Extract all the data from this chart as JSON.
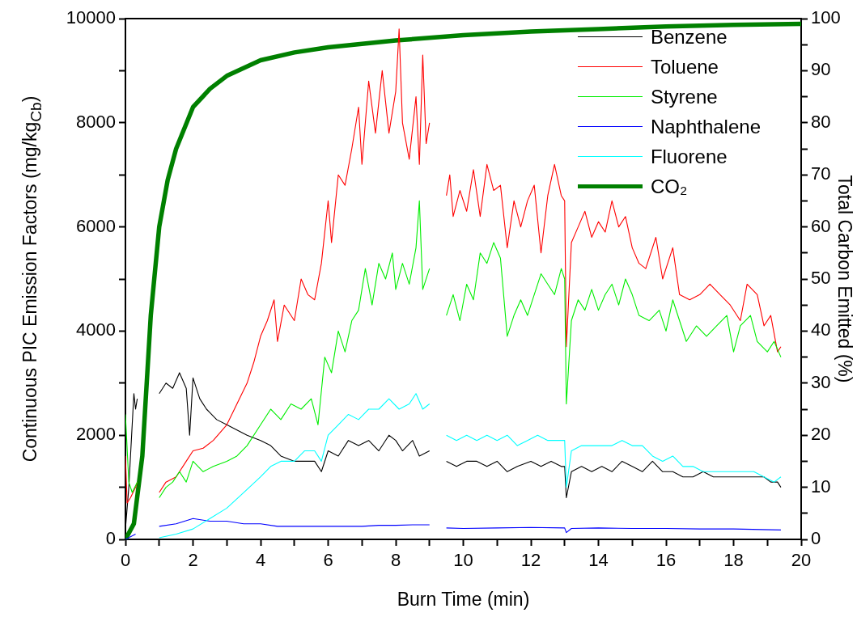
{
  "chart_data": {
    "type": "line",
    "xlabel": "Burn Time (min)",
    "ylabel": "Continuous PIC Emission Factors (mg/kg$_{Cb}$)",
    "y2label": "Total Carbon Emitted (%)",
    "xlim": [
      0,
      20
    ],
    "xticks": [
      0,
      {
        "value": 1,
        "label": null
      },
      2,
      {
        "value": 3,
        "label": null
      },
      4,
      {
        "value": 5,
        "label": null
      },
      6,
      {
        "value": 7,
        "label": null
      },
      8,
      {
        "value": 9,
        "label": null
      },
      10,
      {
        "value": 11,
        "label": null
      },
      12,
      {
        "value": 13,
        "label": null
      },
      14,
      {
        "value": 15,
        "label": null
      },
      16,
      {
        "value": 17,
        "label": null
      },
      18,
      {
        "value": 19,
        "label": null
      },
      20
    ],
    "ylim": [
      0,
      10000
    ],
    "yticks": [
      0,
      {
        "value": 1000,
        "label": null
      },
      2000,
      {
        "value": 3000,
        "label": null
      },
      4000,
      {
        "value": 5000,
        "label": null
      },
      6000,
      {
        "value": 7000,
        "label": null
      },
      8000,
      {
        "value": 9000,
        "label": null
      },
      10000
    ],
    "y2lim": [
      0,
      100
    ],
    "y2ticks": [
      0,
      {
        "value": 5,
        "label": null
      },
      10,
      {
        "value": 15,
        "label": null
      },
      20,
      {
        "value": 25,
        "label": null
      },
      30,
      {
        "value": 35,
        "label": null
      },
      40,
      {
        "value": 45,
        "label": null
      },
      50,
      {
        "value": 55,
        "label": null
      },
      60,
      {
        "value": 65,
        "label": null
      },
      70,
      {
        "value": 75,
        "label": null
      },
      80,
      {
        "value": 85,
        "label": null
      },
      90,
      {
        "value": 95,
        "label": null
      },
      100
    ],
    "grid": false,
    "legend": "top right",
    "marker": "none",
    "line_style": "solid",
    "series": [
      {
        "name": "Benzene",
        "color": "#000000",
        "x": [
          0,
          0.1,
          0.2,
          0.25,
          0.3,
          0.35,
          0.6,
          1.0,
          1.2,
          1.4,
          1.6,
          1.8,
          1.9,
          2.0,
          2.2,
          2.4,
          2.7,
          3.0,
          3.3,
          3.6,
          4.0,
          4.3,
          4.6,
          5.0,
          5.3,
          5.6,
          5.8,
          6.0,
          6.3,
          6.6,
          6.9,
          7.2,
          7.5,
          7.8,
          8.0,
          8.2,
          8.5,
          8.7,
          9.0,
          9.2,
          9.5,
          9.8,
          10.1,
          10.4,
          10.7,
          11.0,
          11.3,
          11.6,
          12.0,
          12.3,
          12.6,
          12.9,
          13.0,
          13.05,
          13.2,
          13.5,
          13.8,
          14.1,
          14.4,
          14.7,
          15.0,
          15.3,
          15.6,
          15.9,
          16.2,
          16.5,
          16.8,
          17.1,
          17.4,
          17.7,
          18.0,
          18.3,
          18.6,
          18.9,
          19.1,
          19.3,
          19.4
        ],
        "values": [
          200,
          1000,
          2200,
          2800,
          2500,
          2700,
          null,
          2800,
          3000,
          2900,
          3200,
          2900,
          2000,
          3100,
          2700,
          2500,
          2300,
          2200,
          2100,
          2000,
          1900,
          1800,
          1600,
          1500,
          1500,
          1500,
          1300,
          1700,
          1600,
          1900,
          1800,
          1900,
          1700,
          2000,
          1900,
          1700,
          1900,
          1600,
          1700,
          null,
          1500,
          1400,
          1500,
          1500,
          1400,
          1500,
          1300,
          1400,
          1500,
          1400,
          1500,
          1400,
          1400,
          800,
          1300,
          1400,
          1300,
          1400,
          1300,
          1500,
          1400,
          1300,
          1500,
          1300,
          1300,
          1200,
          1200,
          1300,
          1200,
          1200,
          1200,
          1200,
          1200,
          1200,
          1100,
          1100,
          1000
        ]
      },
      {
        "name": "Toluene",
        "color": "#ff0000",
        "x": [
          0,
          0.05,
          0.15,
          0.3,
          0.35,
          0.6,
          1.0,
          1.2,
          1.5,
          1.8,
          2.0,
          2.3,
          2.6,
          3.0,
          3.3,
          3.6,
          3.8,
          4.0,
          4.2,
          4.4,
          4.5,
          4.7,
          5.0,
          5.2,
          5.4,
          5.6,
          5.8,
          6.0,
          6.1,
          6.3,
          6.5,
          6.7,
          6.9,
          7.0,
          7.2,
          7.4,
          7.6,
          7.8,
          8.0,
          8.1,
          8.2,
          8.4,
          8.6,
          8.7,
          8.8,
          8.9,
          9.0,
          9.2,
          9.5,
          9.6,
          9.7,
          9.9,
          10.1,
          10.3,
          10.5,
          10.7,
          10.9,
          11.1,
          11.3,
          11.5,
          11.7,
          11.9,
          12.1,
          12.3,
          12.5,
          12.7,
          12.9,
          13.0,
          13.05,
          13.2,
          13.4,
          13.6,
          13.8,
          14.0,
          14.2,
          14.4,
          14.6,
          14.8,
          15.0,
          15.2,
          15.4,
          15.7,
          15.9,
          16.2,
          16.4,
          16.7,
          17.0,
          17.3,
          17.6,
          17.9,
          18.2,
          18.4,
          18.7,
          18.9,
          19.1,
          19.3,
          19.4
        ],
        "values": [
          1600,
          700,
          800,
          1000,
          1100,
          null,
          900,
          1100,
          1200,
          1500,
          1700,
          1750,
          1900,
          2200,
          2600,
          3000,
          3400,
          3900,
          4200,
          4600,
          3800,
          4500,
          4200,
          5000,
          4700,
          4600,
          5300,
          6500,
          5700,
          7000,
          6800,
          7500,
          8300,
          7200,
          8800,
          7800,
          9000,
          7800,
          8600,
          9800,
          8000,
          7300,
          8500,
          7200,
          9300,
          7600,
          8000,
          null,
          6600,
          7000,
          6200,
          6700,
          6300,
          7100,
          6200,
          7200,
          6700,
          6800,
          5600,
          6500,
          6000,
          6500,
          6800,
          5500,
          6600,
          7200,
          6600,
          6500,
          3700,
          5700,
          6000,
          6300,
          5800,
          6100,
          5900,
          6500,
          6000,
          6200,
          5600,
          5300,
          5200,
          5800,
          5000,
          5600,
          4700,
          4600,
          4700,
          4900,
          4700,
          4500,
          4200,
          4900,
          4700,
          4100,
          4300,
          3600,
          3700
        ]
      },
      {
        "name": "Styrene",
        "color": "#00ee00",
        "x": [
          0,
          0.1,
          0.2,
          0.35,
          0.6,
          1.0,
          1.2,
          1.4,
          1.6,
          1.8,
          2.0,
          2.3,
          2.6,
          3.0,
          3.3,
          3.6,
          4.0,
          4.3,
          4.6,
          4.9,
          5.2,
          5.5,
          5.7,
          5.9,
          6.1,
          6.3,
          6.5,
          6.7,
          6.9,
          7.1,
          7.3,
          7.5,
          7.7,
          7.9,
          8.0,
          8.2,
          8.4,
          8.6,
          8.7,
          8.8,
          9.0,
          9.2,
          9.5,
          9.7,
          9.9,
          10.1,
          10.3,
          10.5,
          10.7,
          10.9,
          11.1,
          11.3,
          11.5,
          11.7,
          11.9,
          12.1,
          12.3,
          12.5,
          12.7,
          12.9,
          13.0,
          13.05,
          13.2,
          13.4,
          13.6,
          13.8,
          14.0,
          14.2,
          14.4,
          14.6,
          14.8,
          15.0,
          15.2,
          15.5,
          15.8,
          16.0,
          16.2,
          16.4,
          16.6,
          16.9,
          17.2,
          17.5,
          17.8,
          18.0,
          18.2,
          18.5,
          18.7,
          19.0,
          19.2,
          19.4
        ],
        "values": [
          2400,
          1100,
          900,
          1100,
          null,
          800,
          1000,
          1100,
          1300,
          1100,
          1500,
          1300,
          1400,
          1500,
          1600,
          1800,
          2200,
          2500,
          2300,
          2600,
          2500,
          2700,
          2200,
          3500,
          3200,
          4000,
          3600,
          4200,
          4400,
          5200,
          4500,
          5300,
          5000,
          5500,
          4800,
          5300,
          4900,
          5600,
          6500,
          4800,
          5200,
          null,
          4300,
          4700,
          4200,
          4900,
          4600,
          5500,
          5300,
          5700,
          5400,
          3900,
          4300,
          4600,
          4300,
          4700,
          5100,
          4900,
          4700,
          5200,
          5000,
          2600,
          4200,
          4600,
          4400,
          4800,
          4400,
          4700,
          4900,
          4500,
          5000,
          4700,
          4300,
          4200,
          4400,
          4000,
          4600,
          4200,
          3800,
          4100,
          3900,
          4100,
          4300,
          3600,
          4100,
          4300,
          3800,
          3600,
          3800,
          3500
        ]
      },
      {
        "name": "Naphthalene",
        "color": "#0000ff",
        "x": [
          0,
          0.3,
          0.6,
          1.0,
          1.5,
          2.0,
          2.5,
          3.0,
          3.5,
          4.0,
          4.5,
          5.0,
          5.5,
          6.0,
          6.5,
          7.0,
          7.5,
          8.0,
          8.5,
          9.0,
          9.2,
          9.5,
          10.0,
          11.0,
          12.0,
          13.0,
          13.05,
          13.2,
          14.0,
          15.0,
          16.0,
          17.0,
          18.0,
          19.4
        ],
        "values": [
          0,
          100,
          null,
          250,
          300,
          400,
          350,
          350,
          300,
          300,
          250,
          250,
          250,
          250,
          250,
          250,
          270,
          270,
          280,
          280,
          null,
          220,
          210,
          220,
          230,
          220,
          130,
          210,
          220,
          210,
          210,
          200,
          200,
          180
        ]
      },
      {
        "name": "Fluorene",
        "color": "#00ffff",
        "x": [
          1.0,
          1.5,
          2.0,
          2.5,
          3.0,
          3.5,
          4.0,
          4.3,
          4.6,
          5.0,
          5.3,
          5.6,
          5.8,
          6.0,
          6.3,
          6.6,
          6.9,
          7.2,
          7.5,
          7.8,
          8.1,
          8.4,
          8.6,
          8.8,
          9.0,
          9.2,
          9.5,
          9.8,
          10.1,
          10.4,
          10.7,
          11.0,
          11.3,
          11.6,
          11.9,
          12.2,
          12.5,
          12.8,
          13.0,
          13.05,
          13.2,
          13.5,
          13.8,
          14.1,
          14.4,
          14.7,
          15.0,
          15.3,
          15.6,
          15.9,
          16.2,
          16.5,
          16.8,
          17.1,
          17.4,
          17.7,
          18.0,
          18.3,
          18.6,
          18.9,
          19.2,
          19.4
        ],
        "values": [
          30,
          100,
          200,
          400,
          600,
          900,
          1200,
          1400,
          1500,
          1500,
          1700,
          1700,
          1500,
          2000,
          2200,
          2400,
          2300,
          2500,
          2500,
          2700,
          2500,
          2600,
          2800,
          2500,
          2600,
          null,
          2000,
          1900,
          2000,
          1900,
          2000,
          1900,
          2000,
          1800,
          1900,
          2000,
          1900,
          1900,
          1900,
          1000,
          1700,
          1800,
          1800,
          1800,
          1800,
          1900,
          1800,
          1800,
          1600,
          1500,
          1600,
          1400,
          1400,
          1300,
          1300,
          1300,
          1300,
          1300,
          1300,
          1200,
          1100,
          1200
        ]
      },
      {
        "name": "CO₂",
        "color": "#008000",
        "axis": "y2",
        "x": [
          0,
          0.25,
          0.5,
          0.75,
          1.0,
          1.25,
          1.5,
          2.0,
          2.5,
          3.0,
          4.0,
          5.0,
          6.0,
          8.0,
          10,
          12,
          14,
          16,
          18,
          20
        ],
        "values": [
          0,
          3,
          16,
          43,
          60,
          69,
          75,
          83,
          86.5,
          89,
          92,
          93.5,
          94.5,
          95.8,
          96.8,
          97.5,
          98,
          98.5,
          98.8,
          99
        ]
      }
    ]
  }
}
